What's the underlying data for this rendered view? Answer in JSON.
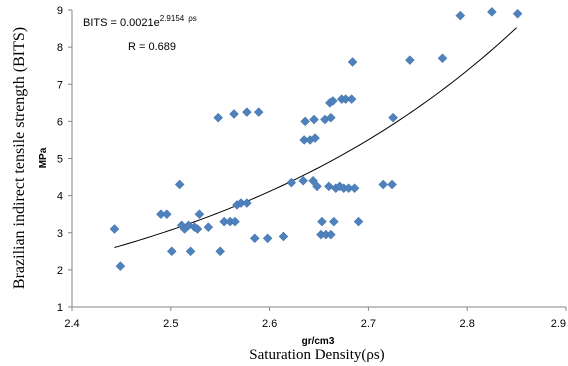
{
  "chart_data": {
    "type": "scatter",
    "ylabel": "Brazilian indirect tensile strength (BITS)",
    "ylabel_unit": "MPa",
    "xlabel": "Saturation Density(ρs)",
    "xlabel_unit": "gr/cm3",
    "xlim": [
      2.4,
      2.9
    ],
    "ylim": [
      1,
      9
    ],
    "x_ticks": [
      "2.4",
      "2.5",
      "2.6",
      "2.7",
      "2.8",
      "2.9"
    ],
    "y_ticks": [
      "1",
      "2",
      "3",
      "4",
      "5",
      "6",
      "7",
      "8",
      "9"
    ],
    "grid": false,
    "marker_color": "#4f81bd",
    "trendline_color": "#000000",
    "equation": {
      "prefix": "BITS = 0.0021e",
      "exponent": "2.9154",
      "suffix": "ρs",
      "r_text": "R = 0.689"
    },
    "trendline": {
      "form": "exponential",
      "a": 0.0021,
      "b": 2.9154,
      "x_range": [
        2.443,
        2.85
      ]
    },
    "series": [
      {
        "points": [
          [
            2.443,
            3.1
          ],
          [
            2.449,
            2.1
          ],
          [
            2.49,
            3.5
          ],
          [
            2.496,
            3.5
          ],
          [
            2.501,
            2.5
          ],
          [
            2.509,
            4.3
          ],
          [
            2.511,
            3.2
          ],
          [
            2.514,
            3.1
          ],
          [
            2.518,
            3.2
          ],
          [
            2.52,
            2.5
          ],
          [
            2.524,
            3.15
          ],
          [
            2.527,
            3.1
          ],
          [
            2.529,
            3.5
          ],
          [
            2.538,
            3.15
          ],
          [
            2.548,
            6.1
          ],
          [
            2.55,
            2.5
          ],
          [
            2.554,
            3.3
          ],
          [
            2.56,
            3.3
          ],
          [
            2.564,
            6.2
          ],
          [
            2.565,
            3.3
          ],
          [
            2.567,
            3.75
          ],
          [
            2.571,
            3.8
          ],
          [
            2.577,
            6.25
          ],
          [
            2.577,
            3.8
          ],
          [
            2.585,
            2.85
          ],
          [
            2.589,
            6.25
          ],
          [
            2.598,
            2.85
          ],
          [
            2.614,
            2.9
          ],
          [
            2.622,
            4.35
          ],
          [
            2.634,
            4.4
          ],
          [
            2.635,
            5.5
          ],
          [
            2.636,
            6.0
          ],
          [
            2.641,
            5.5
          ],
          [
            2.644,
            4.4
          ],
          [
            2.645,
            6.05
          ],
          [
            2.646,
            5.55
          ],
          [
            2.648,
            4.25
          ],
          [
            2.652,
            2.95
          ],
          [
            2.653,
            3.3
          ],
          [
            2.656,
            6.05
          ],
          [
            2.657,
            2.95
          ],
          [
            2.66,
            4.25
          ],
          [
            2.661,
            6.5
          ],
          [
            2.662,
            6.1
          ],
          [
            2.662,
            2.95
          ],
          [
            2.664,
            6.55
          ],
          [
            2.665,
            3.3
          ],
          [
            2.667,
            4.2
          ],
          [
            2.671,
            4.25
          ],
          [
            2.673,
            6.6
          ],
          [
            2.675,
            4.2
          ],
          [
            2.677,
            6.6
          ],
          [
            2.68,
            4.2
          ],
          [
            2.683,
            6.6
          ],
          [
            2.684,
            7.6
          ],
          [
            2.686,
            4.2
          ],
          [
            2.69,
            3.3
          ],
          [
            2.715,
            4.3
          ],
          [
            2.724,
            4.3
          ],
          [
            2.725,
            6.1
          ],
          [
            2.742,
            7.65
          ],
          [
            2.775,
            7.7
          ],
          [
            2.793,
            8.85
          ],
          [
            2.825,
            8.95
          ],
          [
            2.851,
            8.9
          ]
        ]
      }
    ]
  }
}
